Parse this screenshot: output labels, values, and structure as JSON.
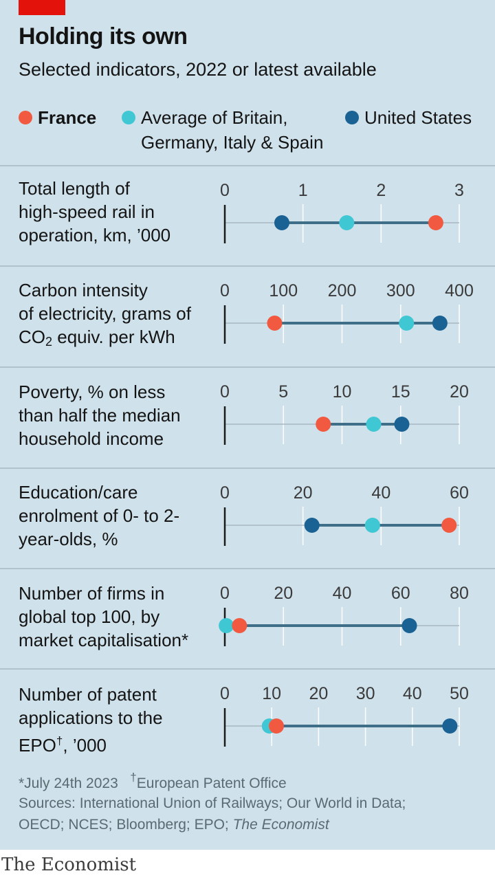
{
  "header": {
    "title": "Holding its own",
    "subtitle": "Selected indicators, 2022 or latest available"
  },
  "legend": {
    "france": "France",
    "average_line1": "Average of Britain,",
    "average_line2": "Germany, Italy & Spain",
    "us": "United States"
  },
  "colors": {
    "france": "#f15a40",
    "average": "#3fc8d4",
    "us": "#1a6194",
    "background": "#cfe1ea",
    "connector": "#3f6f88",
    "brand_red": "#e3120b"
  },
  "panels": [
    {
      "label": [
        "Total length of",
        "high-speed rail in",
        "operation, km, ’000"
      ]
    },
    {
      "label": [
        "Carbon intensity",
        "of electricity, grams of"
      ],
      "label_co2_prefix": "CO",
      "label_co2_sub": "2",
      "label_co2_suffix": " equiv. per kWh"
    },
    {
      "label": [
        "Poverty, % on less",
        "than half the median",
        "household income"
      ]
    },
    {
      "label": [
        "Education/care",
        "enrolment of 0- to 2-",
        "year-olds, %"
      ]
    },
    {
      "label": [
        "Number of firms in",
        "global top 100, by",
        "market capitalisation*"
      ]
    },
    {
      "label": [
        "Number of patent",
        "applications to the"
      ],
      "label_epo_prefix": "EPO",
      "label_epo_sup": "†",
      "label_epo_suffix": ", ’000"
    }
  ],
  "chart_data": {
    "type": "dot-range",
    "series": [
      "France",
      "Average of Britain, Germany, Italy & Spain",
      "United States"
    ],
    "panels": [
      {
        "name": "Total length of high-speed rail in operation, km, ’000",
        "xlim": [
          0,
          3
        ],
        "ticks": [
          0,
          1,
          2,
          3
        ],
        "tick_labels": [
          "0",
          "1",
          "2",
          "3"
        ],
        "values": {
          "France": 2.7,
          "Average": 1.56,
          "United States": 0.73
        }
      },
      {
        "name": "Carbon intensity of electricity, grams of CO2 equiv. per kWh",
        "xlim": [
          0,
          400
        ],
        "ticks": [
          0,
          100,
          200,
          300,
          400
        ],
        "tick_labels": [
          "0",
          "100",
          "200",
          "300",
          "400"
        ],
        "values": {
          "France": 85,
          "Average": 310,
          "United States": 367
        }
      },
      {
        "name": "Poverty, % on less than half the median household income",
        "xlim": [
          0,
          20
        ],
        "ticks": [
          0,
          5,
          10,
          15,
          20
        ],
        "tick_labels": [
          "0",
          "5",
          "10",
          "15",
          "20"
        ],
        "values": {
          "France": 8.4,
          "Average": 12.7,
          "United States": 15.1
        }
      },
      {
        "name": "Education/care enrolment of 0- to 2-year-olds, %",
        "xlim": [
          0,
          60
        ],
        "ticks": [
          0,
          20,
          40,
          60
        ],
        "tick_labels": [
          "0",
          "20",
          "40",
          "60"
        ],
        "values": {
          "France": 57.4,
          "Average": 37.8,
          "United States": 22.3
        }
      },
      {
        "name": "Number of firms in global top 100, by market capitalisation*",
        "xlim": [
          0,
          80
        ],
        "ticks": [
          0,
          20,
          40,
          60,
          80
        ],
        "tick_labels": [
          "0",
          "20",
          "40",
          "60",
          "80"
        ],
        "values": {
          "France": 5,
          "Average": 0.5,
          "United States": 63
        }
      },
      {
        "name": "Number of patent applications to the EPO†, ’000",
        "xlim": [
          0,
          50
        ],
        "ticks": [
          0,
          10,
          20,
          30,
          40,
          50
        ],
        "tick_labels": [
          "0",
          "10",
          "20",
          "30",
          "40",
          "50"
        ],
        "values": {
          "France": 11,
          "Average": 9.5,
          "United States": 48
        }
      }
    ]
  },
  "footnote": {
    "note1": "*July 24th 2023",
    "dagger": "†",
    "note2": "European Patent Office"
  },
  "sources": {
    "line1": "Sources: International Union of Railways; Our World in Data;",
    "line2_plain": "OECD; NCES; Bloomberg; EPO; ",
    "line2_italic": "The Economist"
  },
  "brand": "The Economist"
}
